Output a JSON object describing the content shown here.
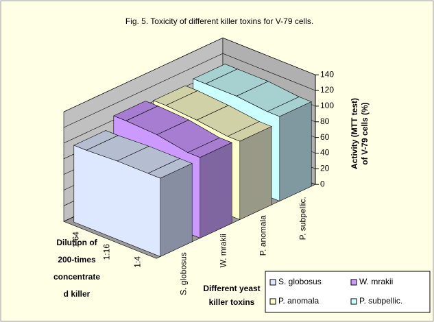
{
  "chart_data": {
    "type": "area3d",
    "title": "Fig. 5. Toxicity of different killer toxins for V-79 cells.",
    "categories": [
      "1:4",
      "1:16",
      "1:64"
    ],
    "depth_label": [
      "Dilution of",
      "200-times",
      "concentrate",
      "d killer"
    ],
    "xlabel": [
      "Different yeast",
      "killer toxins"
    ],
    "ylabel": [
      "Activity (MTT test)",
      "of V-79 cells (%)"
    ],
    "series": [
      {
        "name": "S. globosus",
        "color": "#dde8ff",
        "values": [
          100,
          100,
          98
        ]
      },
      {
        "name": "W. mrakii",
        "color": "#cc99ff",
        "values": [
          103,
          110,
          112
        ]
      },
      {
        "name": "P. anomala",
        "color": "#ffffcc",
        "values": [
          100,
          105,
          108
        ]
      },
      {
        "name": "P. subpellic.",
        "color": "#ccffff",
        "values": [
          108,
          112,
          112
        ]
      }
    ],
    "ylim": [
      0,
      140
    ],
    "yticks": [
      0,
      20,
      40,
      60,
      80,
      100,
      120,
      140
    ],
    "grid": true,
    "legend": "bottom-right"
  }
}
